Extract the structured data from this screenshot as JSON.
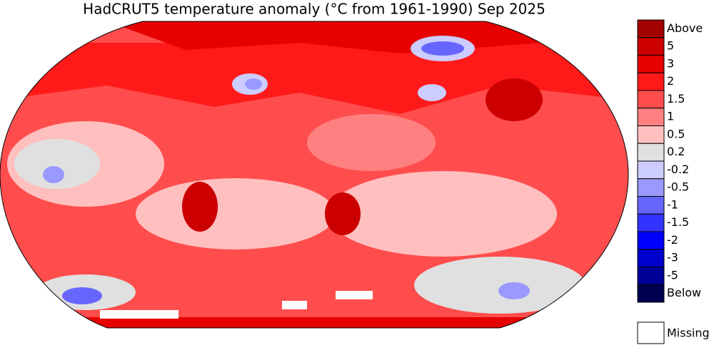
{
  "title": "HadCRUT5 temperature anomaly (°C from 1961-1990) Sep 2025",
  "legend": {
    "items": [
      {
        "label": "Above",
        "color": "#a30000"
      },
      {
        "label": "5",
        "color": "#cc0000"
      },
      {
        "label": "3",
        "color": "#e60000"
      },
      {
        "label": "2",
        "color": "#ff1a1a"
      },
      {
        "label": "1.5",
        "color": "#ff4d4d"
      },
      {
        "label": "1",
        "color": "#ff8080"
      },
      {
        "label": "0.5",
        "color": "#ffbfbf"
      },
      {
        "label": "0.2",
        "color": "#e0e0e0"
      },
      {
        "label": "-0.2",
        "color": "#ccccff"
      },
      {
        "label": "-0.5",
        "color": "#9999ff"
      },
      {
        "label": "-1",
        "color": "#6666ff"
      },
      {
        "label": "-1.5",
        "color": "#3333ff"
      },
      {
        "label": "-2",
        "color": "#0000ff"
      },
      {
        "label": "-3",
        "color": "#0000cc"
      },
      {
        "label": "-5",
        "color": "#000099"
      },
      {
        "label": "Below",
        "color": "#000050"
      }
    ],
    "missing": {
      "label": "Missing",
      "color": "#ffffff"
    }
  }
}
